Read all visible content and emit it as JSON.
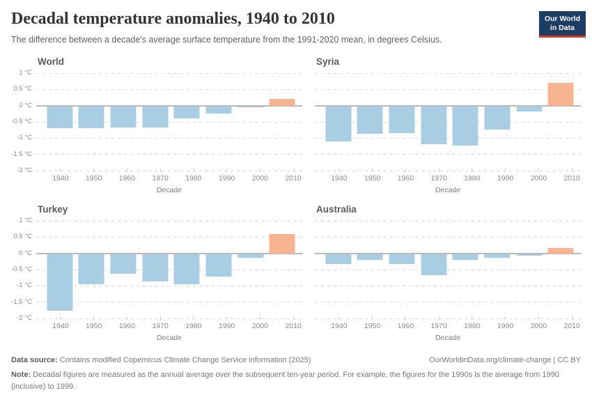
{
  "header": {
    "title": "Decadal temperature anomalies, 1940 to 2010",
    "subtitle": "The difference between a decade's average surface temperature from the 1991-2020 mean, in degrees Celsius.",
    "logo": {
      "line1": "Our World",
      "line2": "in Data"
    }
  },
  "axis": {
    "y_tick_labels": [
      "1 °C",
      "0.5 °C",
      "0 °C",
      "-0.5 °C",
      "-1 °C",
      "-1.5 °C",
      "-2 °C"
    ],
    "y_tick_values": [
      1,
      0.5,
      0,
      -0.5,
      -1,
      -1.5,
      -2
    ],
    "ylim": [
      -2,
      1
    ],
    "xlabel": "Decade"
  },
  "chart_data": [
    {
      "type": "bar",
      "title": "World",
      "categories": [
        "1940",
        "1950",
        "1960",
        "1970",
        "1980",
        "1990",
        "2000",
        "2010"
      ],
      "values": [
        -0.67,
        -0.68,
        -0.64,
        -0.64,
        -0.37,
        -0.23,
        -0.03,
        0.2
      ],
      "xlabel": "Decade",
      "ylabel": "",
      "ylim": [
        -2,
        1
      ],
      "grid": true
    },
    {
      "type": "bar",
      "title": "Syria",
      "categories": [
        "1940",
        "1950",
        "1960",
        "1970",
        "1980",
        "1990",
        "2000",
        "2010"
      ],
      "values": [
        -1.07,
        -0.85,
        -0.82,
        -1.17,
        -1.21,
        -0.72,
        -0.16,
        0.69
      ],
      "xlabel": "Decade",
      "ylabel": "",
      "ylim": [
        -2,
        1
      ],
      "grid": true
    },
    {
      "type": "bar",
      "title": "Turkey",
      "categories": [
        "1940",
        "1950",
        "1960",
        "1970",
        "1980",
        "1990",
        "2000",
        "2010"
      ],
      "values": [
        -1.75,
        -0.93,
        -0.6,
        -0.84,
        -0.93,
        -0.7,
        -0.11,
        0.59
      ],
      "xlabel": "Decade",
      "ylabel": "",
      "ylim": [
        -2,
        1
      ],
      "grid": true
    },
    {
      "type": "bar",
      "title": "Australia",
      "categories": [
        "1940",
        "1950",
        "1960",
        "1970",
        "1980",
        "1990",
        "2000",
        "2010"
      ],
      "values": [
        -0.31,
        -0.18,
        -0.31,
        -0.65,
        -0.18,
        -0.11,
        -0.05,
        0.17
      ],
      "xlabel": "Decade",
      "ylabel": "",
      "ylim": [
        -2,
        1
      ],
      "grid": true
    }
  ],
  "colors": {
    "bar_negative": "#a9cde3",
    "bar_positive": "#f7b491",
    "zero_line": "#b9b9b9",
    "gridline": "#d8d8d8",
    "logo_bg": "#1d3d63",
    "logo_accent": "#d63a2f"
  },
  "footer": {
    "source_label": "Data source:",
    "source_text": " Contains modified Copernicus Climate Change Service information (2025)",
    "link_text": "OurWorldinData.org/climate-change",
    "separator": " | ",
    "license": "CC BY",
    "note_label": "Note:",
    "note_text": " Decadal figures are measured as the annual average over the subsequent ten-year period. For example, the figures for the 1990s is the average from 1990 (inclusive) to 1999."
  }
}
